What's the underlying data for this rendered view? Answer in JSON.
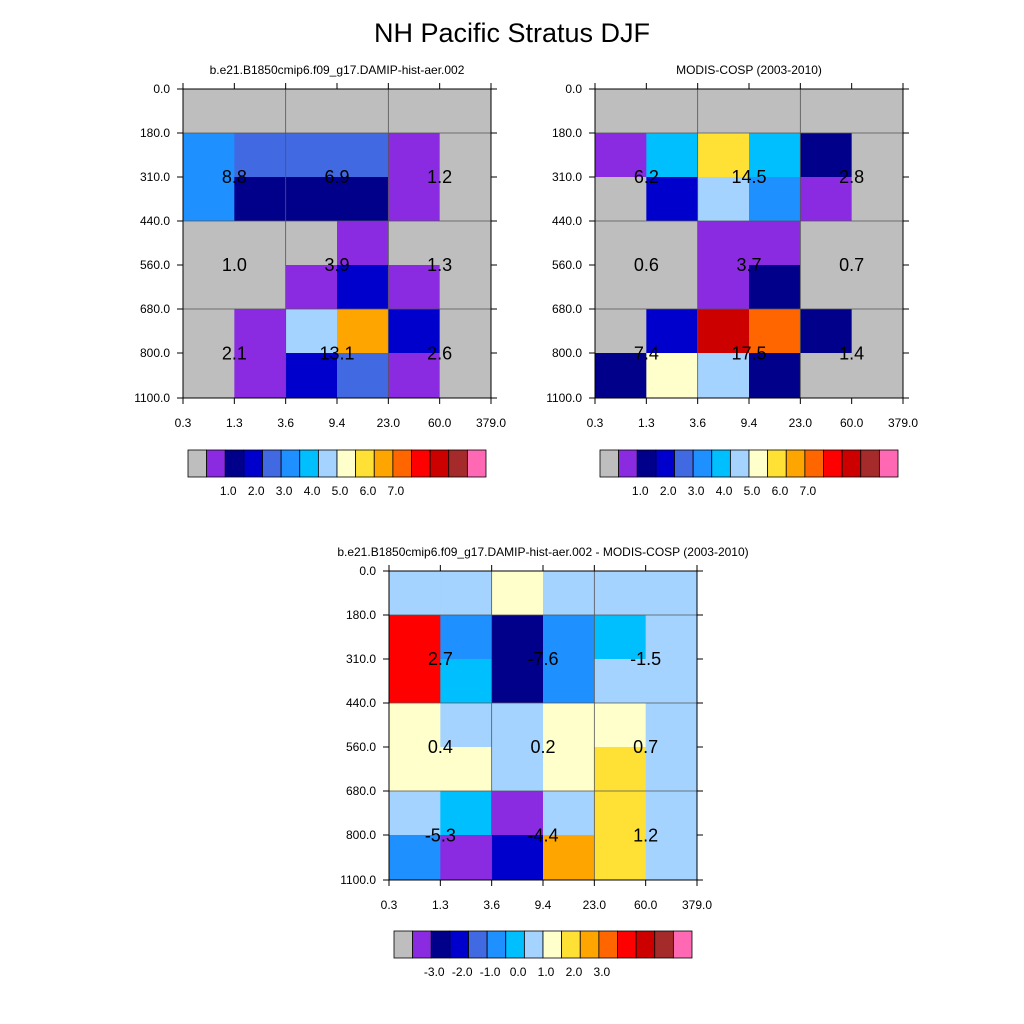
{
  "figure": {
    "title": "NH Pacific Stratus DJF"
  },
  "chart_data": [
    {
      "type": "heatmap",
      "title": "b.e21.B1850cmip6.f09_g17.DAMIP-hist-aer.002",
      "x_ticks": [
        "0.3",
        "1.3",
        "3.6",
        "9.4",
        "23.0",
        "60.0",
        "379.0"
      ],
      "y_ticks": [
        "0.0",
        "180.0",
        "310.0",
        "440.0",
        "560.0",
        "680.0",
        "800.0",
        "1100.0"
      ],
      "cell_colors": [
        [
          "#bebebe",
          "#bebebe",
          "#bebebe",
          "#bebebe",
          "#bebebe",
          "#bebebe"
        ],
        [
          "#1e90ff",
          "#4169e1",
          "#4169e1",
          "#4169e1",
          "#8a2be2",
          "#bebebe"
        ],
        [
          "#1e90ff",
          "#00008b",
          "#00008b",
          "#00008b",
          "#8a2be2",
          "#bebebe"
        ],
        [
          "#bebebe",
          "#bebebe",
          "#bebebe",
          "#8a2be2",
          "#bebebe",
          "#bebebe"
        ],
        [
          "#bebebe",
          "#bebebe",
          "#8a2be2",
          "#0000cd",
          "#8a2be2",
          "#bebebe"
        ],
        [
          "#bebebe",
          "#8a2be2",
          "#a4d3ff",
          "#ffa500",
          "#0000cd",
          "#bebebe"
        ],
        [
          "#bebebe",
          "#8a2be2",
          "#0000cd",
          "#4169e1",
          "#8a2be2",
          "#bebebe"
        ]
      ],
      "box_values": [
        "8.8",
        "6.9",
        "1.2",
        "1.0",
        "3.9",
        "1.3",
        "2.1",
        "13.1",
        "2.6"
      ],
      "colorbar": {
        "colors": [
          "#bebebe",
          "#8a2be2",
          "#00008b",
          "#0000cd",
          "#4169e1",
          "#1e90ff",
          "#00bfff",
          "#a4d3ff",
          "#ffffcc",
          "#ffe135",
          "#ffa500",
          "#ff6600",
          "#ff0000",
          "#cd0000",
          "#a52a2a",
          "#ff69b4"
        ],
        "labels": [
          "1.0",
          "2.0",
          "3.0",
          "4.0",
          "5.0",
          "6.0",
          "7.0"
        ]
      }
    },
    {
      "type": "heatmap",
      "title": "MODIS-COSP (2003-2010)",
      "x_ticks": [
        "0.3",
        "1.3",
        "3.6",
        "9.4",
        "23.0",
        "60.0",
        "379.0"
      ],
      "y_ticks": [
        "0.0",
        "180.0",
        "310.0",
        "440.0",
        "560.0",
        "680.0",
        "800.0",
        "1100.0"
      ],
      "cell_colors": [
        [
          "#bebebe",
          "#bebebe",
          "#bebebe",
          "#bebebe",
          "#bebebe",
          "#bebebe"
        ],
        [
          "#8a2be2",
          "#00bfff",
          "#ffe135",
          "#00bfff",
          "#00008b",
          "#bebebe"
        ],
        [
          "#bebebe",
          "#0000cd",
          "#a4d3ff",
          "#1e90ff",
          "#8a2be2",
          "#bebebe"
        ],
        [
          "#bebebe",
          "#bebebe",
          "#8a2be2",
          "#8a2be2",
          "#bebebe",
          "#bebebe"
        ],
        [
          "#bebebe",
          "#bebebe",
          "#8a2be2",
          "#00008b",
          "#bebebe",
          "#bebebe"
        ],
        [
          "#bebebe",
          "#0000cd",
          "#cd0000",
          "#ff6600",
          "#00008b",
          "#bebebe"
        ],
        [
          "#00008b",
          "#ffffcc",
          "#a4d3ff",
          "#00008b",
          "#bebebe",
          "#bebebe"
        ]
      ],
      "box_values": [
        "6.2",
        "14.5",
        "2.8",
        "0.6",
        "3.7",
        "0.7",
        "7.4",
        "17.5",
        "1.4"
      ],
      "colorbar": {
        "colors": [
          "#bebebe",
          "#8a2be2",
          "#00008b",
          "#0000cd",
          "#4169e1",
          "#1e90ff",
          "#00bfff",
          "#a4d3ff",
          "#ffffcc",
          "#ffe135",
          "#ffa500",
          "#ff6600",
          "#ff0000",
          "#cd0000",
          "#a52a2a",
          "#ff69b4"
        ],
        "labels": [
          "1.0",
          "2.0",
          "3.0",
          "4.0",
          "5.0",
          "6.0",
          "7.0"
        ]
      }
    },
    {
      "type": "heatmap",
      "title": "b.e21.B1850cmip6.f09_g17.DAMIP-hist-aer.002 - MODIS-COSP (2003-2010)",
      "x_ticks": [
        "0.3",
        "1.3",
        "3.6",
        "9.4",
        "23.0",
        "60.0",
        "379.0"
      ],
      "y_ticks": [
        "0.0",
        "180.0",
        "310.0",
        "440.0",
        "560.0",
        "680.0",
        "800.0",
        "1100.0"
      ],
      "cell_colors": [
        [
          "#a4d3ff",
          "#a4d3ff",
          "#ffffcc",
          "#a4d3ff",
          "#a4d3ff",
          "#a4d3ff"
        ],
        [
          "#ff0000",
          "#1e90ff",
          "#00008b",
          "#1e90ff",
          "#00bfff",
          "#a4d3ff"
        ],
        [
          "#ff0000",
          "#00bfff",
          "#00008b",
          "#1e90ff",
          "#a4d3ff",
          "#a4d3ff"
        ],
        [
          "#ffffcc",
          "#a4d3ff",
          "#a4d3ff",
          "#ffffcc",
          "#ffffcc",
          "#a4d3ff"
        ],
        [
          "#ffffcc",
          "#ffffcc",
          "#a4d3ff",
          "#ffffcc",
          "#ffe135",
          "#a4d3ff"
        ],
        [
          "#a4d3ff",
          "#00bfff",
          "#8a2be2",
          "#a4d3ff",
          "#ffe135",
          "#a4d3ff"
        ],
        [
          "#1e90ff",
          "#8a2be2",
          "#0000cd",
          "#ffa500",
          "#ffe135",
          "#a4d3ff"
        ]
      ],
      "box_values": [
        "2.7",
        "-7.6",
        "-1.5",
        "0.4",
        "0.2",
        "0.7",
        "-5.3",
        "-4.4",
        "1.2"
      ],
      "colorbar": {
        "colors": [
          "#bebebe",
          "#8a2be2",
          "#00008b",
          "#0000cd",
          "#4169e1",
          "#1e90ff",
          "#00bfff",
          "#a4d3ff",
          "#ffffcc",
          "#ffe135",
          "#ffa500",
          "#ff6600",
          "#ff0000",
          "#cd0000",
          "#a52a2a",
          "#ff69b4"
        ],
        "labels": [
          "-3.0",
          "-2.0",
          "-1.0",
          "0.0",
          "1.0",
          "2.0",
          "3.0"
        ]
      }
    }
  ]
}
